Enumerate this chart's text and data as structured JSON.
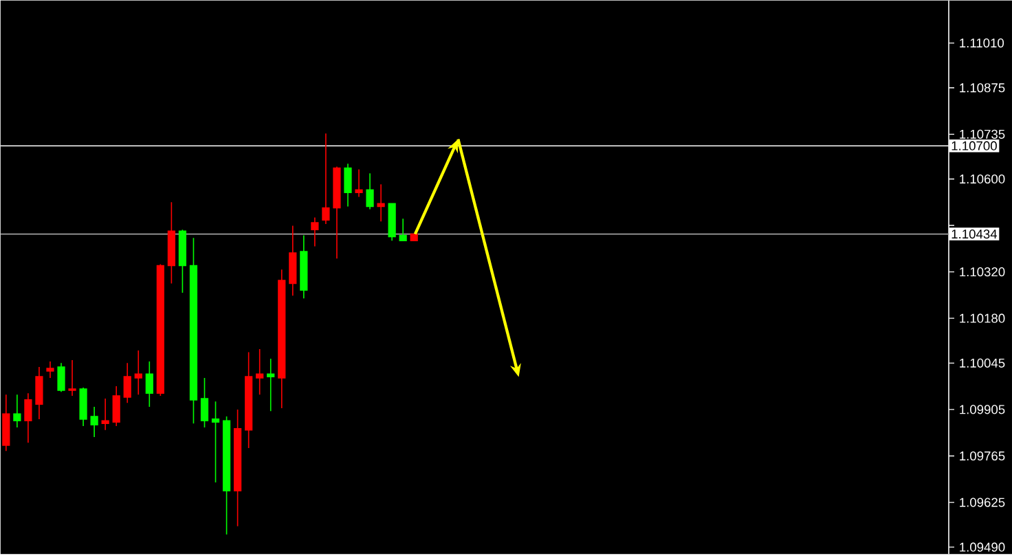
{
  "chart_data": {
    "type": "candlestick",
    "tick_labels": "y",
    "categories": [
      null,
      null,
      null,
      null,
      null,
      null,
      null,
      null,
      null,
      null,
      null,
      null,
      null,
      null,
      null,
      null,
      null,
      null,
      null,
      null,
      null,
      null,
      null,
      null,
      null,
      null,
      null,
      null,
      null,
      null,
      null,
      null,
      null,
      null,
      null,
      null,
      null,
      null,
      null,
      null,
      null,
      null,
      null,
      null,
      null,
      null,
      null,
      null,
      null,
      null,
      null,
      null,
      null,
      null,
      null,
      null,
      null,
      null,
      null,
      null,
      null,
      null,
      null,
      null,
      null,
      null,
      null,
      null,
      null,
      null,
      null,
      null,
      null,
      null,
      null,
      null,
      null,
      null,
      null,
      null,
      null,
      null,
      null,
      null,
      null,
      null
    ],
    "ohlc": [
      [
        1.09797,
        1.0995,
        1.0978,
        1.09892
      ],
      [
        1.09892,
        1.0995,
        1.09851,
        1.09871
      ],
      [
        1.09871,
        1.09954,
        1.09805,
        1.09934
      ],
      [
        1.09921,
        1.10033,
        1.09876,
        1.10004
      ],
      [
        1.10021,
        1.1005,
        1.1,
        1.10029
      ],
      [
        1.10033,
        1.10045,
        1.09958,
        1.09963
      ],
      [
        1.09963,
        1.10054,
        1.09946,
        1.09967
      ],
      [
        1.09967,
        1.09971,
        1.09855,
        1.09876
      ],
      [
        1.09884,
        1.09913,
        1.09822,
        1.09859
      ],
      [
        1.09863,
        1.09938,
        1.09843,
        1.09871
      ],
      [
        1.09867,
        1.09975,
        1.09855,
        1.09946
      ],
      [
        1.09942,
        1.10045,
        1.09925,
        1.10004
      ],
      [
        1.1,
        1.10083,
        1.0995,
        1.10012
      ],
      [
        1.10012,
        1.1005,
        1.09913,
        1.09954
      ],
      [
        1.09954,
        1.10343,
        1.09946,
        1.10339
      ],
      [
        1.10339,
        1.1053,
        1.10285,
        1.10443
      ],
      [
        1.10443,
        1.10447,
        1.10257,
        1.10339
      ],
      [
        1.10339,
        1.10422,
        1.09863,
        1.09934
      ],
      [
        1.09938,
        1.1,
        1.09851,
        1.09871
      ],
      [
        1.09876,
        1.09929,
        1.09685,
        1.09867
      ],
      [
        1.09871,
        1.09884,
        1.09528,
        1.0966
      ],
      [
        1.0966,
        1.09905,
        1.09553,
        1.09847
      ],
      [
        1.09843,
        1.10078,
        1.09789,
        1.10004
      ],
      [
        1.1,
        1.10087,
        1.0995,
        1.10012
      ],
      [
        1.10012,
        1.10058,
        1.099,
        1.10004
      ],
      [
        1.1,
        1.10327,
        1.09909,
        1.10294
      ],
      [
        1.10285,
        1.10459,
        1.10248,
        1.10377
      ],
      [
        1.10381,
        1.1043,
        1.1024,
        1.10265
      ],
      [
        1.10447,
        1.10484,
        1.10397,
        1.10468
      ],
      [
        1.10476,
        1.10737,
        1.10464,
        1.10513
      ],
      [
        1.10513,
        1.10637,
        1.1036,
        1.10633
      ],
      [
        1.10633,
        1.10646,
        1.10517,
        1.10559
      ],
      [
        1.10559,
        1.10629,
        1.10546,
        1.10567
      ],
      [
        1.10567,
        1.10617,
        1.10509,
        1.10517
      ],
      [
        1.10517,
        1.10584,
        1.10472,
        1.10526
      ],
      [
        1.10526,
        1.10526,
        1.10414,
        1.10426
      ],
      [
        1.1043,
        1.1048,
        1.10414,
        1.10414
      ],
      [
        1.10414,
        1.10434,
        1.10414,
        1.10434
      ],
      null,
      null,
      null,
      null,
      null,
      null,
      null,
      null,
      null,
      null,
      null,
      null,
      null,
      null,
      null,
      null,
      null,
      null,
      null,
      null,
      null,
      null,
      null,
      null,
      null,
      null,
      null,
      null,
      null,
      null,
      null,
      null,
      null,
      null,
      null,
      null,
      null,
      null,
      null,
      null,
      null,
      null,
      null,
      null,
      null,
      null,
      null,
      null
    ],
    "colors": [
      "#ff0000",
      "#00ff00",
      "#ff0000",
      "#ff0000",
      "#ff0000",
      "#00ff00",
      "#ff0000",
      "#00ff00",
      "#00ff00",
      "#ff0000",
      "#ff0000",
      "#ff0000",
      "#ff0000",
      "#00ff00",
      "#ff0000",
      "#ff0000",
      "#00ff00",
      "#00ff00",
      "#00ff00",
      "#00ff00",
      "#00ff00",
      "#ff0000",
      "#ff0000",
      "#ff0000",
      "#00ff00",
      "#ff0000",
      "#ff0000",
      "#00ff00",
      "#ff0000",
      "#ff0000",
      "#ff0000",
      "#00ff00",
      "#ff0000",
      "#00ff00",
      "#ff0000",
      "#00ff00",
      "#00ff00",
      "#ff0000",
      null,
      null,
      null,
      null,
      null,
      null,
      null,
      null,
      null,
      null,
      null,
      null,
      null,
      null,
      null,
      null,
      null,
      null,
      null,
      null,
      null,
      null,
      null,
      null,
      null,
      null,
      null,
      null,
      null,
      null,
      null,
      null,
      null,
      null,
      null,
      null,
      null,
      null,
      null,
      null,
      null,
      null,
      null,
      null,
      null,
      null,
      null,
      null
    ],
    "ylim": [
      1.09469,
      1.11138
    ],
    "yticks": [
      {
        "value": 1.0949,
        "label": "1.09490"
      },
      {
        "value": 1.09625,
        "label": "1.09625"
      },
      {
        "value": 1.09765,
        "label": "1.09765"
      },
      {
        "value": 1.09905,
        "label": "1.09905"
      },
      {
        "value": 1.10045,
        "label": "1.10045"
      },
      {
        "value": 1.1018,
        "label": "1.10180"
      },
      {
        "value": 1.1032,
        "label": "1.10320"
      },
      {
        "value": 1.1046,
        "label": null
      },
      {
        "value": 1.106,
        "label": "1.10600"
      },
      {
        "value": 1.10735,
        "label": "1.10735"
      },
      {
        "value": 1.10875,
        "label": "1.10875"
      },
      {
        "value": 1.1101,
        "label": "1.11010"
      }
    ],
    "ref_lines": [
      {
        "axis": "y",
        "value": 1.107,
        "label": "1.10700",
        "color": "#ffffff"
      },
      {
        "axis": "y",
        "value": 1.10434,
        "label": "1.10434",
        "color": "#a0a0a0"
      }
    ],
    "grid": false
  }
}
